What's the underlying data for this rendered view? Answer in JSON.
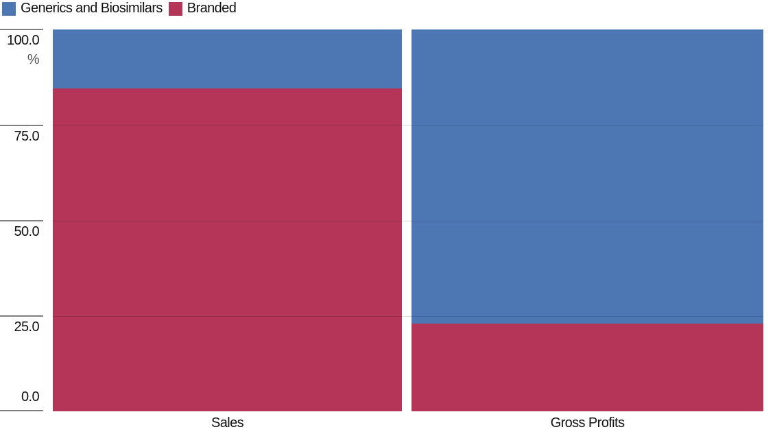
{
  "legend": {
    "items": [
      {
        "label": "Generics and Biosimilars",
        "color": "#4C77B3"
      },
      {
        "label": "Branded",
        "color": "#B43557"
      }
    ]
  },
  "y_axis": {
    "unit": "%",
    "ticks": [
      "100.0",
      "75.0",
      "50.0",
      "25.0",
      "0.0"
    ]
  },
  "x_axis": {
    "categories": [
      "Sales",
      "Gross Profits"
    ]
  },
  "chart_data": {
    "type": "bar",
    "subtype": "stacked-100-percent",
    "categories": [
      "Sales",
      "Gross Profits"
    ],
    "series": [
      {
        "name": "Generics and Biosimilars",
        "color": "#4C77B3",
        "values": [
          15.4,
          77.0
        ]
      },
      {
        "name": "Branded",
        "color": "#B43557",
        "values": [
          84.6,
          23.0
        ]
      }
    ],
    "title": "",
    "xlabel": "",
    "ylabel": "%",
    "ylim": [
      0,
      100
    ],
    "grid": true,
    "gridline_values": [
      25,
      50,
      75
    ],
    "legend_position": "top-left"
  }
}
